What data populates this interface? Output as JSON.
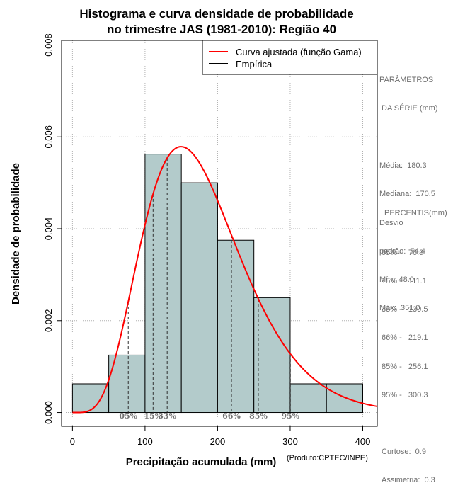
{
  "chart_data": {
    "type": "histogram",
    "title_line1": "Histograma e curva densidade de probabilidade",
    "title_line2": "no trimestre JAS (1981-2010): Região 40",
    "xlabel": "Precipitação acumulada (mm)",
    "ylabel": "Densidade de probabilidade",
    "xlim": [
      -15,
      420
    ],
    "ylim": [
      -0.0003,
      0.0081
    ],
    "x_ticks": [
      0,
      100,
      200,
      300,
      400
    ],
    "y_ticks": [
      0.0,
      0.002,
      0.004,
      0.006,
      0.008
    ],
    "y_tick_labels": [
      "0.000",
      "0.002",
      "0.004",
      "0.006",
      "0.008"
    ],
    "grid": true,
    "bins": [
      {
        "start": 0,
        "end": 50,
        "density": 0.000625
      },
      {
        "start": 50,
        "end": 100,
        "density": 0.00125
      },
      {
        "start": 100,
        "end": 150,
        "density": 0.005625
      },
      {
        "start": 150,
        "end": 200,
        "density": 0.005
      },
      {
        "start": 200,
        "end": 250,
        "density": 0.00375
      },
      {
        "start": 250,
        "end": 300,
        "density": 0.0025
      },
      {
        "start": 300,
        "end": 350,
        "density": 0.000625
      },
      {
        "start": 350,
        "end": 400,
        "density": 0.000625
      }
    ],
    "bar_color": "#b3cbcb",
    "curve": {
      "name": "Curva ajustada (função Gama)",
      "color": "#ff0000",
      "mean": 180.3,
      "sd": 74.4
    },
    "empirical": {
      "name": "Empírica",
      "color": "#000000"
    },
    "percentile_markers": [
      {
        "label": "05%",
        "value": 76.9
      },
      {
        "label": "15%",
        "value": 111.1
      },
      {
        "label": "33%",
        "value": 130.5
      },
      {
        "label": "66%",
        "value": 219.1
      },
      {
        "label": "85%",
        "value": 256.1
      },
      {
        "label": "95%",
        "value": 300.3
      }
    ],
    "legend_position": "top-right"
  },
  "side_panel": {
    "params_title_1": "PARÂMETROS",
    "params_title_2": " DA SÉRIE (mm)",
    "stats_lines": [
      "Média:  180.3",
      "Mediana:  170.5",
      "Desvio",
      "padrão:  74.4",
      "Mín:  48.0",
      "Máx:  351.0"
    ],
    "percentis_title": "PERCENTIS(mm)",
    "percentis_lines": [
      "05% -   76.9",
      "15% -   111.1",
      "33% -   130.5",
      "66% -   219.1",
      "85% -   256.1",
      "95% -   300.3"
    ],
    "shape_lines": [
      "Curtose:  0.9",
      "Assimetria:  0.3"
    ]
  },
  "credit": "(Produto:CPTEC/INPE)"
}
